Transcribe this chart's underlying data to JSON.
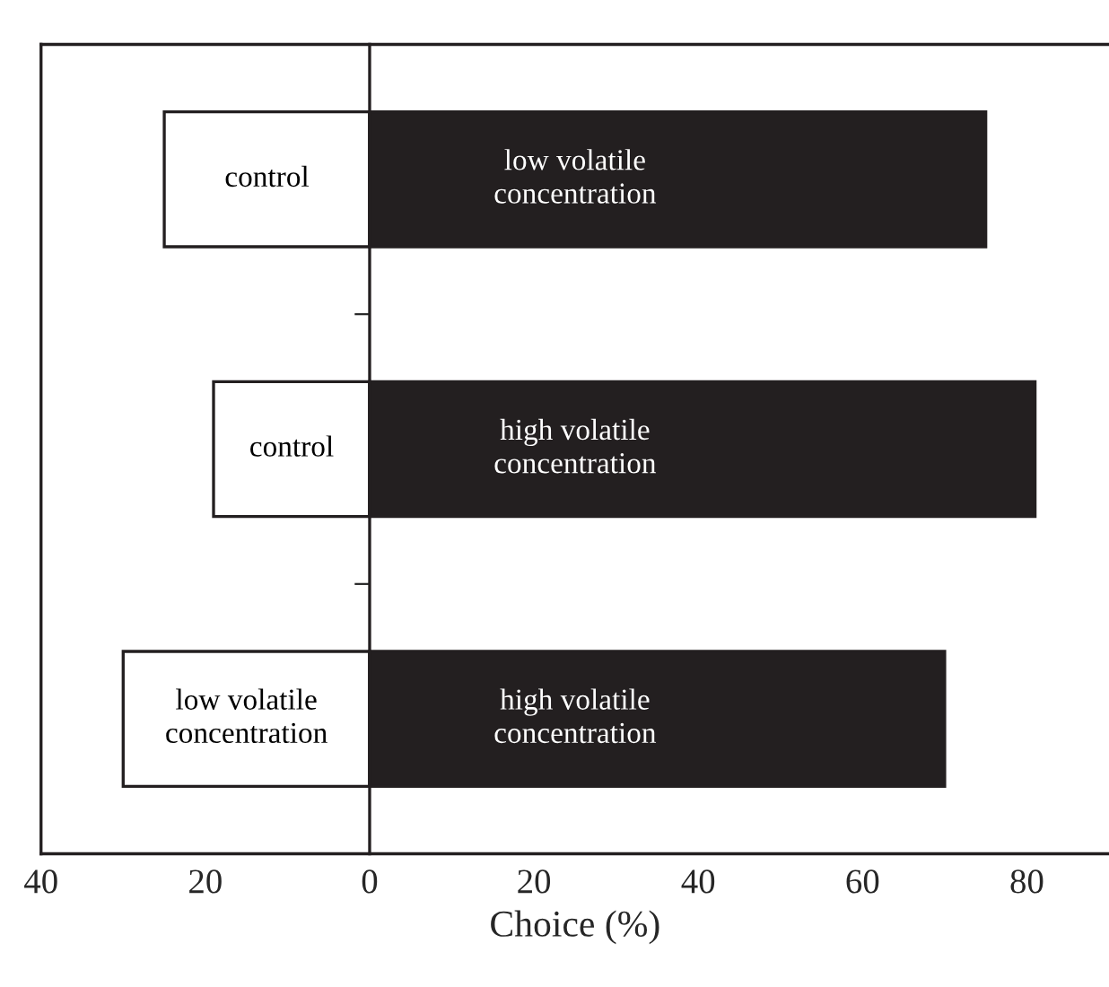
{
  "chart_data": {
    "type": "bar",
    "orientation": "horizontal",
    "xlabel": "Choice (%)",
    "categories": [
      null,
      null,
      null
    ],
    "series": [
      {
        "color": "#ffffff",
        "values": [
          -25,
          -19,
          -30
        ],
        "value_labels": [
          "control",
          "control",
          "low volatile\nconcentration"
        ]
      },
      {
        "color": "#231f20",
        "values": [
          75,
          81,
          70
        ],
        "value_labels": [
          "low volatile\nconcentration",
          "high volatile\nconcentration",
          "high volatile\nconcentration"
        ]
      }
    ],
    "xlim": [
      -40,
      90
    ],
    "xticks": [
      {
        "value": -40,
        "label": "40"
      },
      {
        "value": -20,
        "label": "20"
      },
      0,
      20,
      40,
      60,
      80
    ],
    "stacked": true
  }
}
